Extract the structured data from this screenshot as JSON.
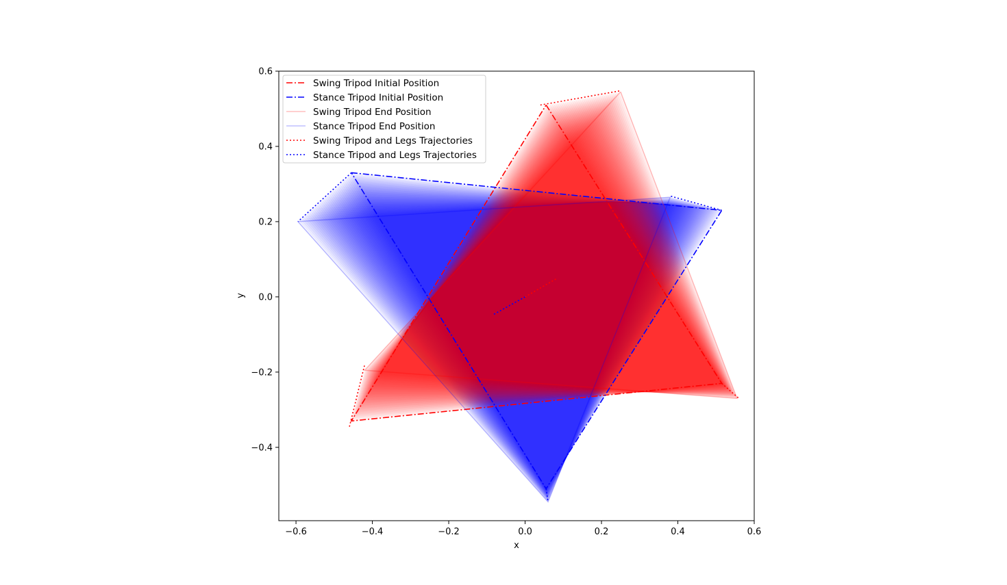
{
  "chart_data": {
    "type": "line",
    "xlabel": "x",
    "ylabel": "y",
    "xlim": [
      -0.645,
      0.6
    ],
    "ylim": [
      -0.595,
      0.6
    ],
    "x_ticks": [
      -0.6,
      -0.4,
      -0.2,
      0.0,
      0.2,
      0.4,
      0.6
    ],
    "x_tick_labels": [
      "−0.6",
      "−0.4",
      "−0.2",
      "0.0",
      "0.2",
      "0.4",
      "0.6"
    ],
    "y_ticks": [
      -0.4,
      -0.2,
      0.0,
      0.2,
      0.4,
      0.6
    ],
    "y_tick_labels": [
      "−0.4",
      "−0.2",
      "0.0",
      "0.2",
      "0.4",
      "0.6"
    ],
    "legend_position": "top-left",
    "colors": {
      "swing": "#ff0000",
      "stance": "#0000ff"
    },
    "series": [
      {
        "name": "Swing Tripod Initial Position",
        "color": "#ff0000",
        "style": "dashdot",
        "points": [
          [
            0.055,
            0.51
          ],
          [
            0.515,
            -0.23
          ],
          [
            -0.455,
            -0.33
          ],
          [
            0.055,
            0.51
          ]
        ]
      },
      {
        "name": "Stance Tripod Initial Position",
        "color": "#0000ff",
        "style": "dashdot",
        "points": [
          [
            -0.455,
            0.33
          ],
          [
            0.515,
            0.23
          ],
          [
            0.055,
            -0.51
          ],
          [
            -0.455,
            0.33
          ]
        ]
      },
      {
        "name": "Swing Tripod End Position",
        "color": "#ff0000",
        "style": "solid-faint",
        "points": [
          [
            0.25,
            0.545
          ],
          [
            0.555,
            -0.27
          ],
          [
            -0.42,
            -0.195
          ],
          [
            0.25,
            0.545
          ]
        ]
      },
      {
        "name": "Stance Tripod End Position",
        "color": "#0000ff",
        "style": "solid-faint",
        "points": [
          [
            -0.595,
            0.2
          ],
          [
            0.38,
            0.265
          ],
          [
            0.06,
            -0.545
          ],
          [
            -0.595,
            0.2
          ]
        ]
      },
      {
        "name": "Swing Tripod and Legs Trajectories",
        "color": "#ff0000",
        "style": "dotted",
        "segments": [
          [
            [
              0.04,
              0.51
            ],
            [
              0.25,
              0.548
            ]
          ],
          [
            [
              0.515,
              -0.23
            ],
            [
              0.56,
              -0.27
            ]
          ],
          [
            [
              -0.46,
              -0.345
            ],
            [
              -0.42,
              -0.18
            ]
          ],
          [
            [
              0.0,
              0.0
            ],
            [
              0.085,
              0.05
            ]
          ]
        ]
      },
      {
        "name": "Stance Tripod and Legs Trajectories",
        "color": "#0000ff",
        "style": "dotted",
        "segments": [
          [
            [
              -0.455,
              0.33
            ],
            [
              -0.595,
              0.2
            ]
          ],
          [
            [
              0.515,
              0.23
            ],
            [
              0.38,
              0.268
            ]
          ],
          [
            [
              0.055,
              -0.51
            ],
            [
              0.06,
              -0.545
            ]
          ],
          [
            [
              0.0,
              0.0
            ],
            [
              -0.085,
              -0.048
            ]
          ]
        ]
      }
    ]
  }
}
